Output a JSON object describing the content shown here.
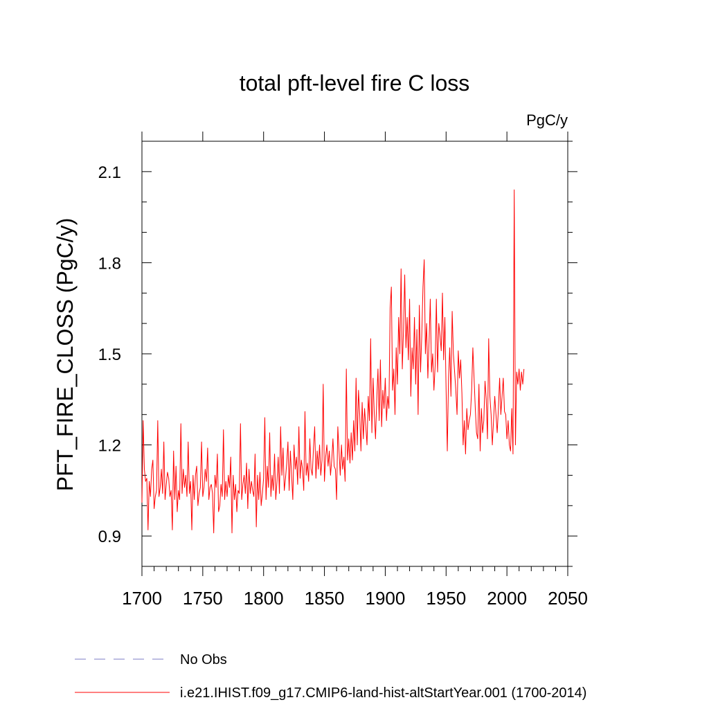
{
  "chart_data": {
    "type": "line",
    "title": "total pft-level fire C loss",
    "units": "PgC/y",
    "xlabel": "",
    "ylabel": "PFT_FIRE_CLOSS  (PgC/y)",
    "xlim": [
      1700,
      2050
    ],
    "ylim": [
      0.8,
      2.2
    ],
    "xticks": [
      1700,
      1750,
      1800,
      1850,
      1900,
      1950,
      2000,
      2050
    ],
    "yticks": [
      0.9,
      1.2,
      1.5,
      1.8,
      2.1
    ],
    "ytick_labels": [
      "0.9",
      "1.2",
      "1.5",
      "1.8",
      "2.1"
    ],
    "grid": false,
    "legend": [
      {
        "label": "No Obs",
        "color": "#7b7bc4",
        "style": "dashed"
      },
      {
        "label": "i.e21.IHIST.f09_g17.CMIP6-land-hist-altStartYear.001 (1700-2014)",
        "color": "#ff0000",
        "style": "solid"
      }
    ],
    "series": [
      {
        "name": "i.e21.IHIST.f09_g17.CMIP6-land-hist-altStartYear.001 (1700-2014)",
        "color": "#ff0000",
        "x_start": 1700,
        "x_step": 1,
        "values": [
          1.01,
          1.28,
          1.12,
          1.08,
          1.09,
          0.92,
          1.08,
          1.03,
          1.12,
          1.15,
          0.99,
          1.03,
          1.05,
          1.28,
          1.03,
          1.06,
          1.12,
          1.04,
          1.21,
          1.02,
          1.07,
          1.11,
          1.09,
          1.03,
          1.05,
          0.92,
          1.18,
          1.02,
          1.13,
          0.98,
          1.05,
          1.02,
          1.27,
          1.04,
          1.12,
          1.06,
          1.1,
          1.03,
          1.21,
          1.04,
          1.08,
          0.92,
          1.1,
          1.02,
          1.1,
          1.13,
          1.0,
          1.04,
          1.06,
          1.21,
          1.03,
          1.06,
          1.12,
          1.08,
          1.19,
          1.02,
          1.06,
          1.07,
          1.04,
          0.91,
          1.1,
          1.06,
          1.17,
          0.98,
          1.0,
          1.07,
          1.03,
          1.25,
          1.02,
          1.08,
          1.03,
          1.1,
          1.06,
          1.16,
          0.91,
          1.1,
          1.02,
          1.07,
          0.98,
          1.05,
          1.04,
          1.27,
          1.02,
          1.07,
          1.1,
          1.04,
          1.14,
          0.99,
          1.12,
          1.04,
          1.08,
          1.05,
          1.03,
          1.17,
          0.93,
          1.1,
          1.02,
          1.11,
          1.0,
          1.04,
          1.09,
          1.29,
          1.02,
          1.13,
          1.06,
          1.24,
          1.03,
          1.1,
          1.05,
          1.17,
          1.02,
          1.08,
          1.16,
          1.04,
          1.26,
          1.1,
          1.19,
          1.05,
          1.09,
          1.14,
          1.21,
          1.05,
          1.18,
          1.1,
          1.02,
          1.2,
          1.12,
          1.16,
          1.07,
          1.26,
          1.09,
          1.15,
          1.12,
          1.05,
          1.31,
          1.1,
          1.14,
          1.08,
          1.22,
          1.12,
          1.1,
          1.19,
          1.26,
          1.09,
          1.18,
          1.12,
          1.2,
          1.1,
          1.15,
          1.4,
          1.08,
          1.16,
          1.2,
          1.13,
          1.18,
          1.1,
          1.15,
          1.22,
          1.13,
          1.12,
          1.02,
          1.26,
          1.18,
          1.1,
          1.2,
          1.12,
          1.16,
          1.08,
          1.45,
          1.15,
          1.22,
          1.14,
          1.24,
          1.15,
          1.28,
          1.18,
          1.42,
          1.2,
          1.38,
          1.3,
          1.18,
          1.34,
          1.22,
          1.32,
          1.26,
          1.2,
          1.36,
          1.28,
          1.55,
          1.24,
          1.42,
          1.3,
          1.22,
          1.35,
          1.45,
          1.28,
          1.48,
          1.26,
          1.38,
          1.32,
          1.42,
          1.28,
          1.36,
          1.32,
          1.65,
          1.72,
          1.38,
          1.45,
          1.3,
          1.52,
          1.4,
          1.62,
          1.5,
          1.78,
          1.45,
          1.58,
          1.76,
          1.52,
          1.62,
          1.48,
          1.68,
          1.36,
          1.52,
          1.45,
          1.62,
          1.4,
          1.58,
          1.3,
          1.66,
          1.44,
          1.56,
          1.72,
          1.81,
          1.5,
          1.6,
          1.42,
          1.54,
          1.68,
          1.44,
          1.5,
          1.38,
          1.46,
          1.68,
          1.44,
          1.6,
          1.56,
          1.51,
          1.7,
          1.48,
          1.62,
          1.38,
          1.18,
          1.42,
          1.52,
          1.36,
          1.64,
          1.5,
          1.44,
          1.38,
          1.3,
          1.51,
          1.42,
          1.48,
          1.37,
          1.2,
          1.28,
          1.17,
          1.32,
          1.25,
          1.28,
          1.3,
          1.38,
          1.52,
          1.42,
          1.32,
          1.24,
          1.22,
          1.4,
          1.18,
          1.32,
          1.24,
          1.28,
          1.41,
          1.35,
          1.22,
          1.55,
          1.36,
          1.3,
          1.2,
          1.28,
          1.36,
          1.3,
          1.24,
          1.32,
          1.42,
          1.3,
          1.36,
          1.42,
          1.31,
          1.3,
          1.22,
          1.28,
          1.2,
          1.18,
          1.32,
          1.17,
          2.04,
          1.2,
          1.44,
          1.4,
          1.45,
          1.38,
          1.44,
          1.4,
          1.45
        ]
      }
    ]
  }
}
